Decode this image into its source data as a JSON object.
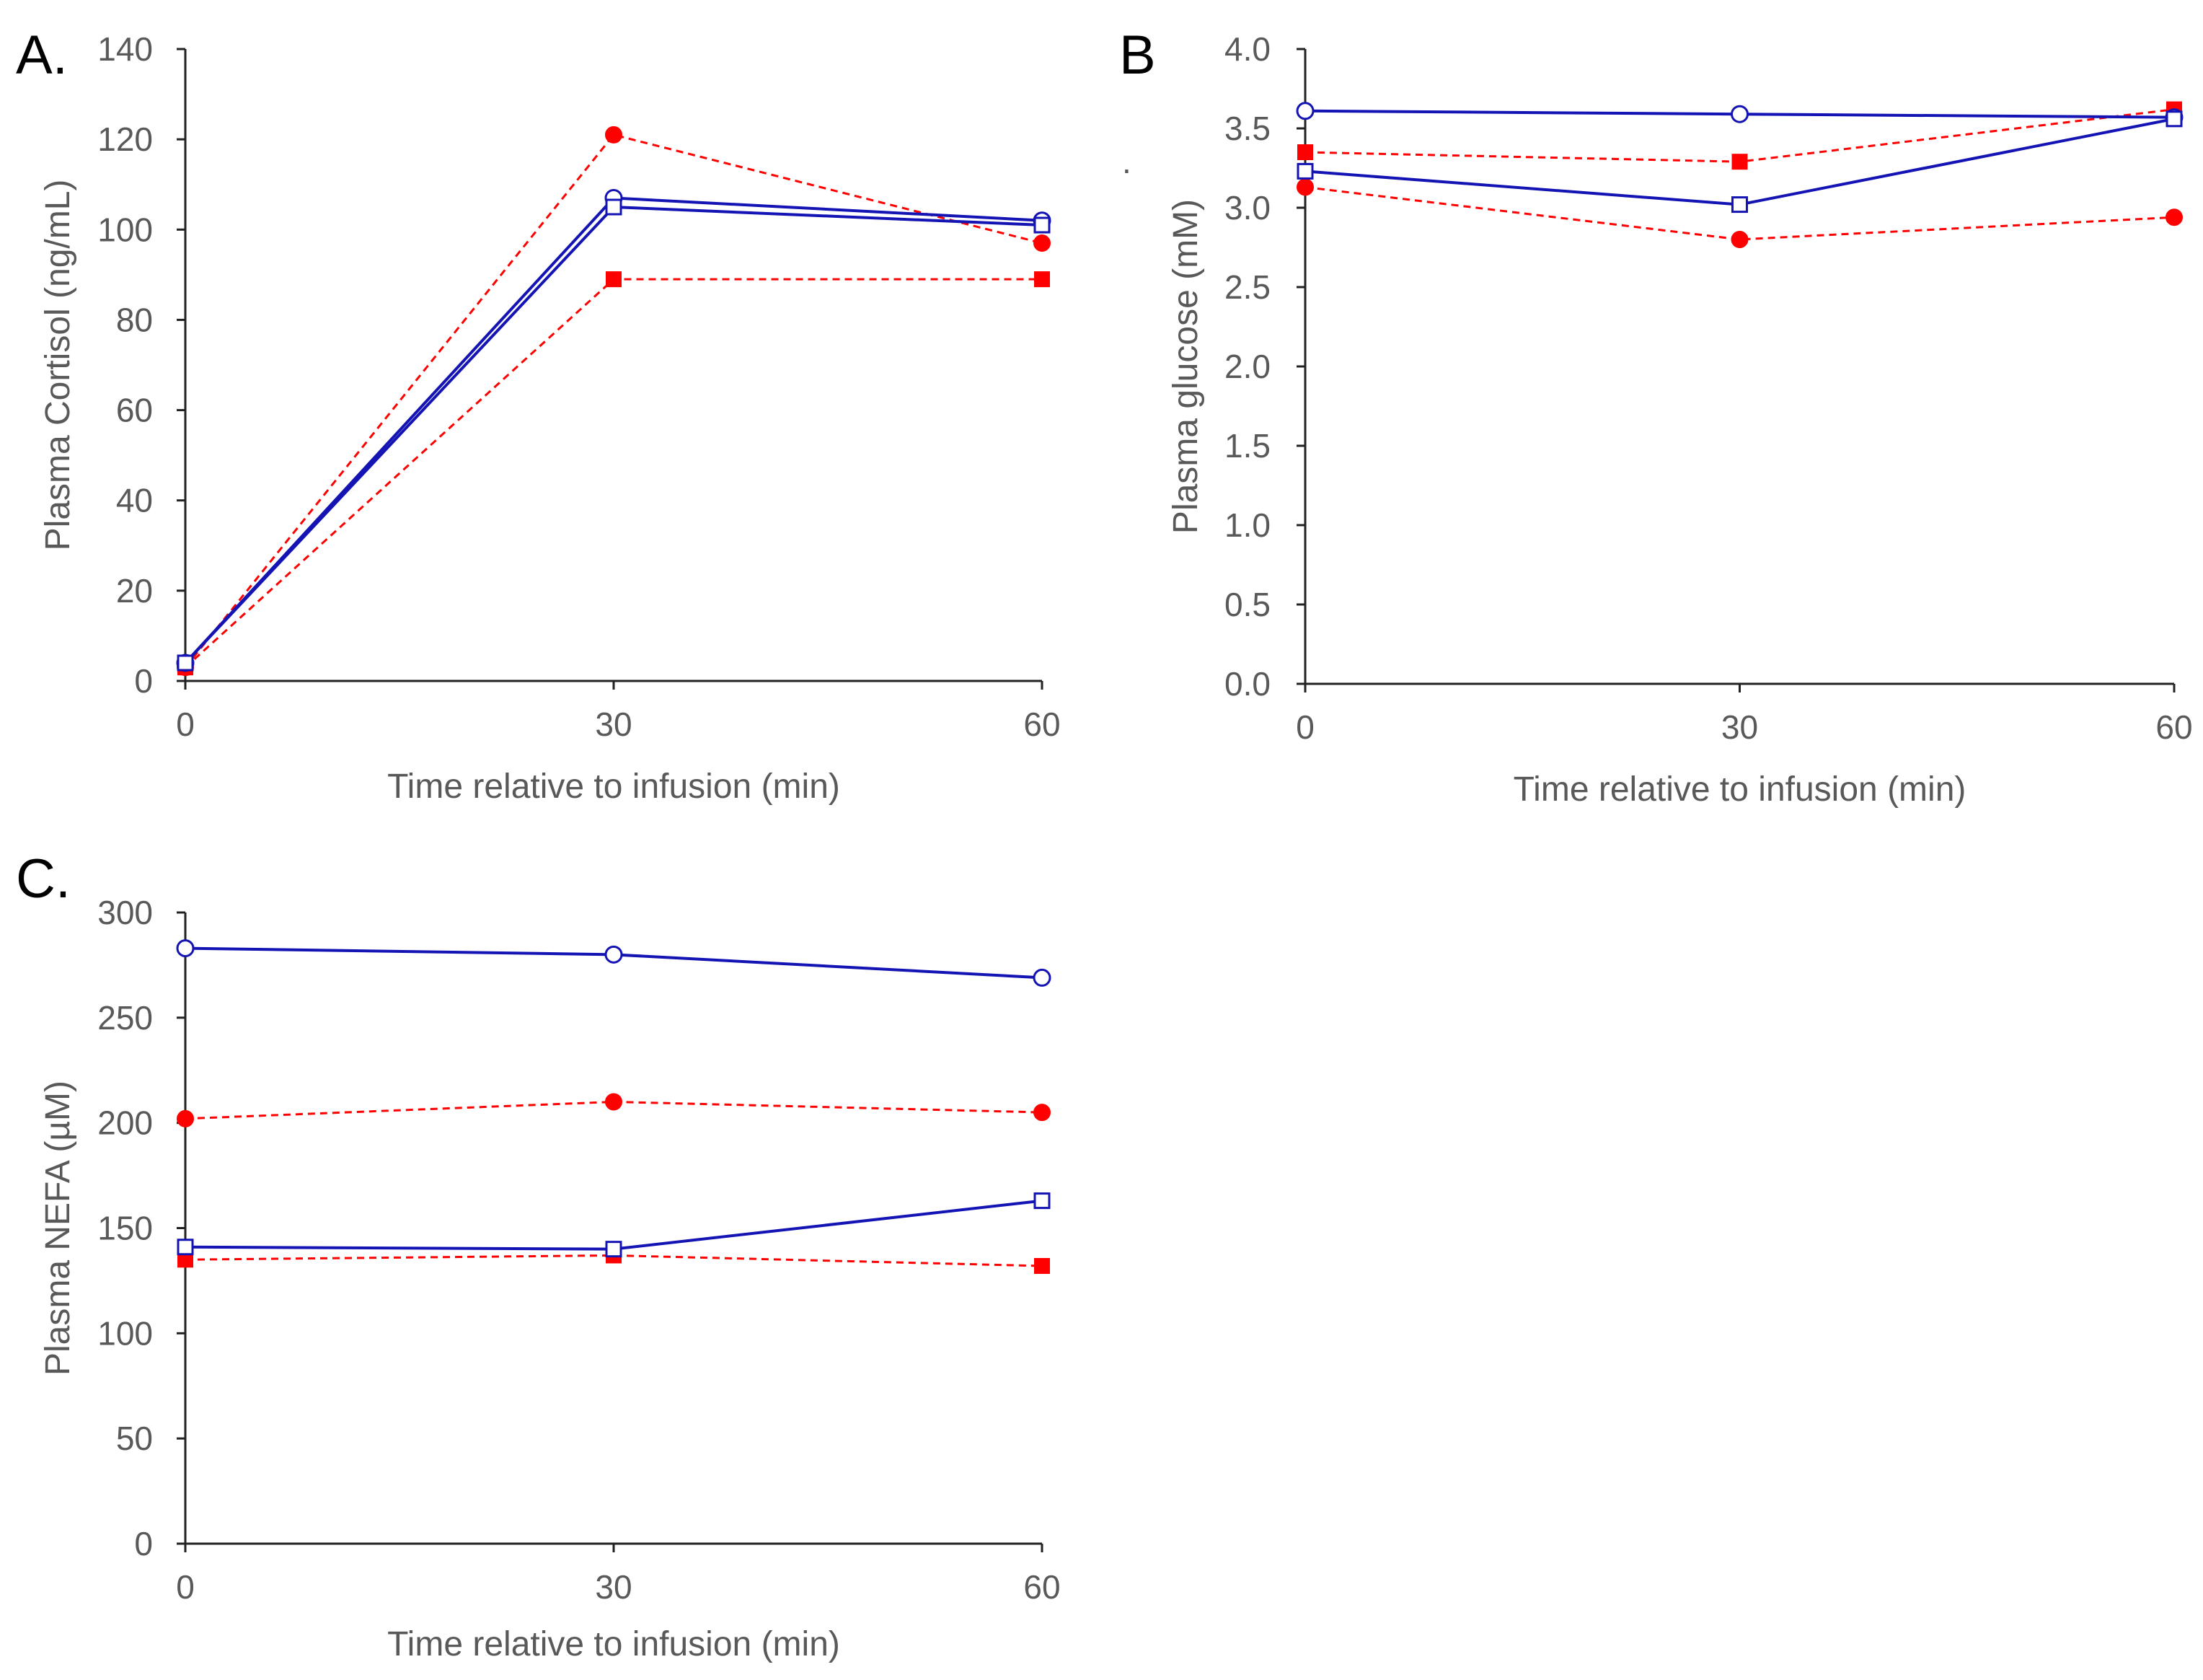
{
  "colors": {
    "control": "#1414b4",
    "treatment": "#ff0000",
    "axis": "#222222",
    "text": "#595959"
  },
  "chart_data": [
    {
      "panel": "A.",
      "type": "line",
      "title": "",
      "xlabel": "Time relative to infusion (min)",
      "ylabel": "Plasma Cortisol (ng/mL)",
      "x": [
        0,
        30,
        60
      ],
      "xticks": [
        "0",
        "30",
        "60"
      ],
      "xlim": [
        0,
        60
      ],
      "ylim": [
        0,
        140
      ],
      "yticks": [
        "0",
        "20",
        "40",
        "60",
        "80",
        "100",
        "120",
        "140"
      ],
      "grid": false,
      "series": [
        {
          "marker": "circle-filled",
          "line": "dashed",
          "color": "#ff0000",
          "values": [
            3,
            121,
            97
          ]
        },
        {
          "marker": "square-filled",
          "line": "dashed",
          "color": "#ff0000",
          "values": [
            3,
            89,
            89
          ]
        },
        {
          "marker": "circle-open",
          "line": "solid",
          "color": "#1414b4",
          "values": [
            4,
            107,
            102
          ]
        },
        {
          "marker": "square-open",
          "line": "solid",
          "color": "#1414b4",
          "values": [
            4,
            105,
            101
          ]
        }
      ]
    },
    {
      "panel": "B",
      "type": "line",
      "title": "",
      "xlabel": "Time relative to infusion (min)",
      "ylabel": "Plasma glucose (mM)",
      "x": [
        0,
        30,
        60
      ],
      "xticks": [
        "0",
        "30",
        "60"
      ],
      "xlim": [
        0,
        60
      ],
      "ylim": [
        0,
        4
      ],
      "yticks": [
        "0.0",
        "0.5",
        "1.0",
        "1.5",
        "2.0",
        "2.5",
        "3.0",
        "3.5",
        "4.0"
      ],
      "grid": false,
      "series": [
        {
          "marker": "circle-filled",
          "line": "dashed",
          "color": "#ff0000",
          "values": [
            3.13,
            2.8,
            2.94
          ]
        },
        {
          "marker": "square-filled",
          "line": "dashed",
          "color": "#ff0000",
          "values": [
            3.35,
            3.29,
            3.62
          ]
        },
        {
          "marker": "circle-open",
          "line": "solid",
          "color": "#1414b4",
          "values": [
            3.61,
            3.59,
            3.57
          ]
        },
        {
          "marker": "square-open",
          "line": "solid",
          "color": "#1414b4",
          "values": [
            3.23,
            3.02,
            3.56
          ]
        }
      ]
    },
    {
      "panel": "C.",
      "type": "line",
      "title": "",
      "xlabel": "Time relative to infusion (min)",
      "ylabel": "Plasma NEFA (µM)",
      "x": [
        0,
        30,
        60
      ],
      "xticks": [
        "0",
        "30",
        "60"
      ],
      "xlim": [
        0,
        60
      ],
      "ylim": [
        0,
        300
      ],
      "yticks": [
        "0",
        "50",
        "100",
        "150",
        "200",
        "250",
        "300"
      ],
      "grid": false,
      "series": [
        {
          "marker": "circle-filled",
          "line": "dashed",
          "color": "#ff0000",
          "values": [
            202,
            210,
            205
          ]
        },
        {
          "marker": "square-filled",
          "line": "dashed",
          "color": "#ff0000",
          "values": [
            135,
            137,
            132
          ]
        },
        {
          "marker": "circle-open",
          "line": "solid",
          "color": "#1414b4",
          "values": [
            283,
            280,
            269
          ]
        },
        {
          "marker": "square-open",
          "line": "solid",
          "color": "#1414b4",
          "values": [
            141,
            140,
            163
          ]
        }
      ]
    }
  ],
  "stray_mark": "."
}
